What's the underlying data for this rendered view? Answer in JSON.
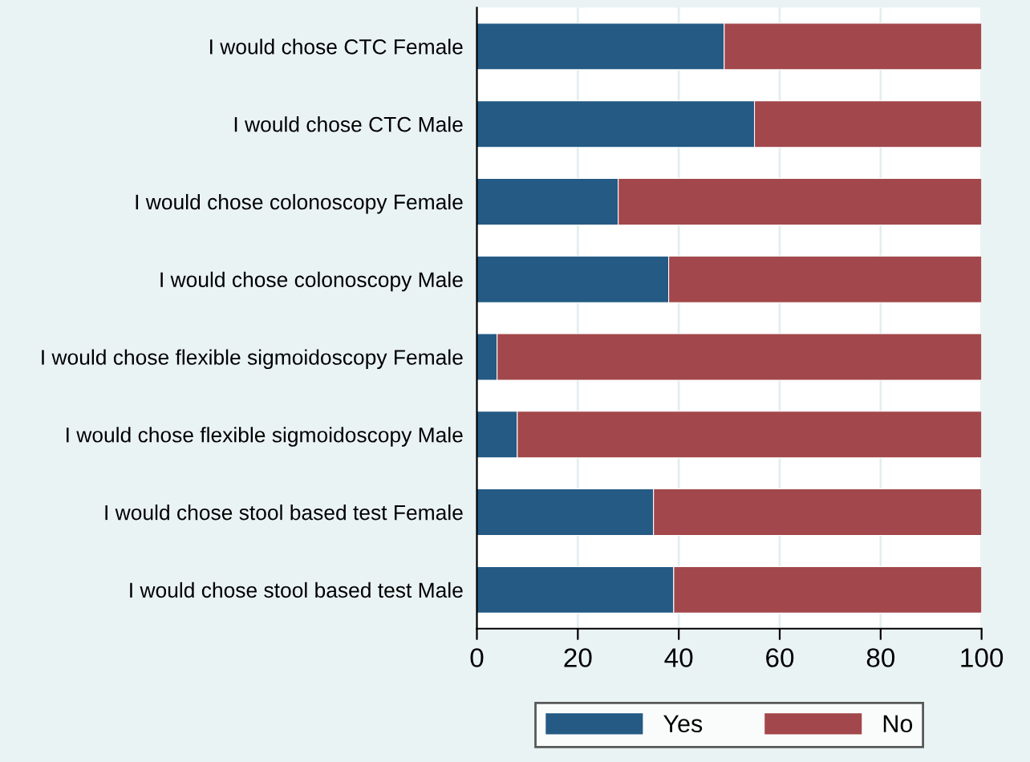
{
  "chart_data": {
    "type": "bar",
    "orientation": "horizontal",
    "stacked": true,
    "categories": [
      "I would chose CTC Female",
      "I would chose CTC Male",
      "I would chose colonoscopy Female",
      "I would chose colonoscopy Male",
      "I would chose flexible sigmoidoscopy Female",
      "I would chose flexible sigmoidoscopy Male",
      "I would chose stool based test Female",
      "I would chose stool based test Male"
    ],
    "series": [
      {
        "name": "Yes",
        "color": "#245a84",
        "values": [
          49,
          55,
          28,
          38,
          4,
          8,
          35,
          39
        ]
      },
      {
        "name": "No",
        "color": "#a2474b",
        "values": [
          51,
          45,
          72,
          62,
          96,
          92,
          65,
          61
        ]
      }
    ],
    "xlim": [
      0,
      100
    ],
    "xticks": [
      0,
      20,
      40,
      60,
      80,
      100
    ],
    "grid": "x",
    "legend": "bottom"
  }
}
